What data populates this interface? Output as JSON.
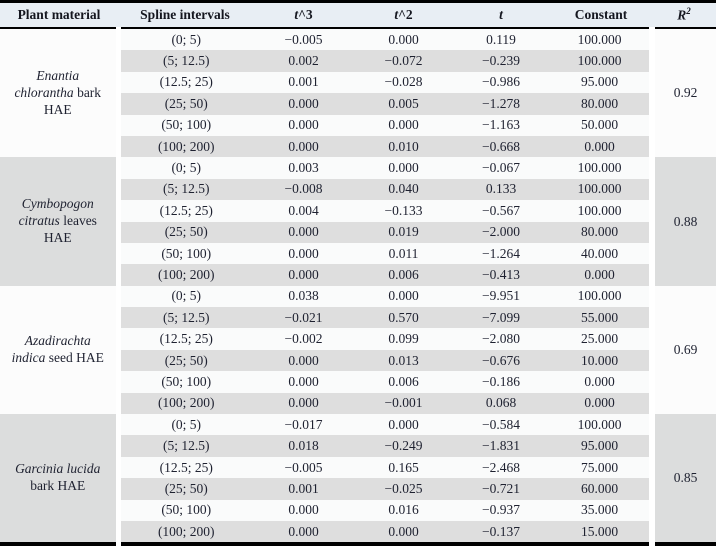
{
  "colors": {
    "header_bg": "#e8eef4",
    "stripe_dark": "#dedede",
    "stripe_light": "#fafbfb",
    "band_dark": "#dcdddd",
    "band_light": "#fcfcfc",
    "rule": "#000000",
    "text": "#1e2130"
  },
  "table": {
    "headers": {
      "plant": "Plant material",
      "spline": "Spline intervals",
      "t_symbol": "t",
      "t3_suffix": "^3",
      "t2_suffix": "^2",
      "constant": "Constant",
      "r2_base": "R",
      "r2_sup": "2"
    },
    "groups": [
      {
        "plant_italic": "Enantia chlorantha",
        "plant_regular": " bark HAE",
        "r2": "0.92",
        "rows": [
          {
            "interval": "(0; 5)",
            "t3": "−0.005",
            "t2": "0.000",
            "t": "0.119",
            "constant": "100.000"
          },
          {
            "interval": "(5; 12.5)",
            "t3": "0.002",
            "t2": "−0.072",
            "t": "−0.239",
            "constant": "100.000"
          },
          {
            "interval": "(12.5; 25)",
            "t3": "0.001",
            "t2": "−0.028",
            "t": "−0.986",
            "constant": "95.000"
          },
          {
            "interval": "(25; 50)",
            "t3": "0.000",
            "t2": "0.005",
            "t": "−1.278",
            "constant": "80.000"
          },
          {
            "interval": "(50; 100)",
            "t3": "0.000",
            "t2": "0.000",
            "t": "−1.163",
            "constant": "50.000"
          },
          {
            "interval": "(100; 200)",
            "t3": "0.000",
            "t2": "0.010",
            "t": "−0.668",
            "constant": "0.000"
          }
        ]
      },
      {
        "plant_italic": "Cymbopogon citratus",
        "plant_regular": " leaves HAE",
        "r2": "0.88",
        "rows": [
          {
            "interval": "(0; 5)",
            "t3": "0.003",
            "t2": "0.000",
            "t": "−0.067",
            "constant": "100.000"
          },
          {
            "interval": "(5; 12.5)",
            "t3": "−0.008",
            "t2": "0.040",
            "t": "0.133",
            "constant": "100.000"
          },
          {
            "interval": "(12.5; 25)",
            "t3": "0.004",
            "t2": "−0.133",
            "t": "−0.567",
            "constant": "100.000"
          },
          {
            "interval": "(25; 50)",
            "t3": "0.000",
            "t2": "0.019",
            "t": "−2.000",
            "constant": "80.000"
          },
          {
            "interval": "(50; 100)",
            "t3": "0.000",
            "t2": "0.011",
            "t": "−1.264",
            "constant": "40.000"
          },
          {
            "interval": "(100; 200)",
            "t3": "0.000",
            "t2": "0.006",
            "t": "−0.413",
            "constant": "0.000"
          }
        ]
      },
      {
        "plant_italic": "Azadirachta indica",
        "plant_regular": " seed HAE",
        "r2": "0.69",
        "rows": [
          {
            "interval": "(0; 5)",
            "t3": "0.038",
            "t2": "0.000",
            "t": "−9.951",
            "constant": "100.000"
          },
          {
            "interval": "(5; 12.5)",
            "t3": "−0.021",
            "t2": "0.570",
            "t": "−7.099",
            "constant": "55.000"
          },
          {
            "interval": "(12.5; 25)",
            "t3": "−0.002",
            "t2": "0.099",
            "t": "−2.080",
            "constant": "25.000"
          },
          {
            "interval": "(25; 50)",
            "t3": "0.000",
            "t2": "0.013",
            "t": "−0.676",
            "constant": "10.000"
          },
          {
            "interval": "(50; 100)",
            "t3": "0.000",
            "t2": "0.006",
            "t": "−0.186",
            "constant": "0.000"
          },
          {
            "interval": "(100; 200)",
            "t3": "0.000",
            "t2": "−0.001",
            "t": "0.068",
            "constant": "0.000"
          }
        ]
      },
      {
        "plant_italic": "Garcinia lucida",
        "plant_regular": " bark HAE",
        "r2": "0.85",
        "rows": [
          {
            "interval": "(0; 5)",
            "t3": "−0.017",
            "t2": "0.000",
            "t": "−0.584",
            "constant": "100.000"
          },
          {
            "interval": "(5; 12.5)",
            "t3": "0.018",
            "t2": "−0.249",
            "t": "−1.831",
            "constant": "95.000"
          },
          {
            "interval": "(12.5; 25)",
            "t3": "−0.005",
            "t2": "0.165",
            "t": "−2.468",
            "constant": "75.000"
          },
          {
            "interval": "(25; 50)",
            "t3": "0.001",
            "t2": "−0.025",
            "t": "−0.721",
            "constant": "60.000"
          },
          {
            "interval": "(50; 100)",
            "t3": "0.000",
            "t2": "0.016",
            "t": "−0.937",
            "constant": "35.000"
          },
          {
            "interval": "(100; 200)",
            "t3": "0.000",
            "t2": "0.000",
            "t": "−0.137",
            "constant": "15.000"
          }
        ]
      }
    ]
  }
}
